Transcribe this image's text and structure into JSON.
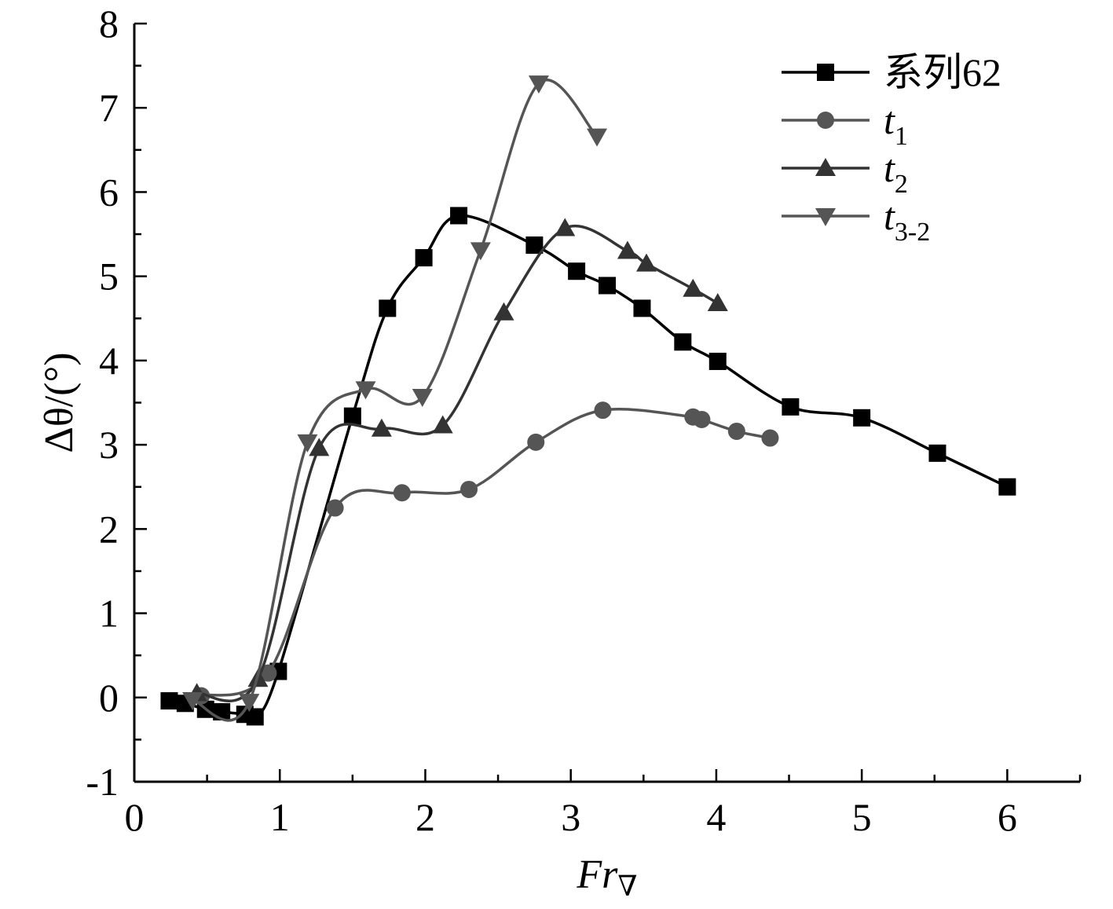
{
  "chart_data": {
    "type": "line",
    "xlabel": "Fr",
    "xlabel_sub": "∇",
    "ylabel": "Δθ/(°)",
    "xlim": [
      0,
      6.5
    ],
    "ylim": [
      -1,
      8
    ],
    "x_ticks": [
      0,
      1,
      2,
      3,
      4,
      5,
      6
    ],
    "y_ticks": [
      -1,
      0,
      1,
      2,
      3,
      4,
      5,
      6,
      7,
      8
    ],
    "x_tick_labels": [
      "0",
      "1",
      "2",
      "3",
      "4",
      "5",
      "6"
    ],
    "y_tick_labels": [
      "-1",
      "0",
      "1",
      "2",
      "3",
      "4",
      "5",
      "6",
      "7",
      "8"
    ],
    "legend_position": "top-right",
    "series": [
      {
        "name": "系列62",
        "color": "#000000",
        "marker": "square",
        "x": [
          0.24,
          0.35,
          0.49,
          0.6,
          0.76,
          0.83,
          0.99,
          1.5,
          1.74,
          1.99,
          2.23,
          2.75,
          3.04,
          3.25,
          3.49,
          3.77,
          4.01,
          4.51,
          5.0,
          5.52,
          6.0
        ],
        "y": [
          -0.04,
          -0.07,
          -0.14,
          -0.17,
          -0.2,
          -0.23,
          0.31,
          3.34,
          4.62,
          5.22,
          5.72,
          5.37,
          5.06,
          4.89,
          4.62,
          4.22,
          3.99,
          3.45,
          3.32,
          2.9,
          2.5
        ]
      },
      {
        "name": "t1",
        "name_base": "t",
        "name_sub": "1",
        "color": "#555555",
        "marker": "circle",
        "x": [
          0.46,
          0.92,
          1.38,
          1.84,
          2.3,
          2.76,
          3.22,
          3.84,
          3.9,
          4.14,
          4.37
        ],
        "y": [
          0.02,
          0.29,
          2.25,
          2.43,
          2.47,
          3.03,
          3.41,
          3.33,
          3.3,
          3.16,
          3.08
        ]
      },
      {
        "name": "t2",
        "name_base": "t",
        "name_sub": "2",
        "color": "#333333",
        "marker": "triangle-up",
        "x": [
          0.43,
          0.85,
          1.27,
          1.7,
          2.12,
          2.54,
          2.96,
          3.39,
          3.52,
          3.84,
          4.01
        ],
        "y": [
          0.05,
          0.22,
          2.96,
          3.19,
          3.23,
          4.57,
          5.57,
          5.3,
          5.15,
          4.85,
          4.68
        ]
      },
      {
        "name": "t3-2",
        "name_base": "t",
        "name_sub": "3-2",
        "color": "#555555",
        "marker": "triangle-down",
        "x": [
          0.4,
          0.79,
          1.19,
          1.59,
          1.98,
          2.38,
          2.78,
          3.18
        ],
        "y": [
          -0.03,
          -0.05,
          3.03,
          3.66,
          3.57,
          5.31,
          7.29,
          6.66
        ]
      }
    ]
  }
}
